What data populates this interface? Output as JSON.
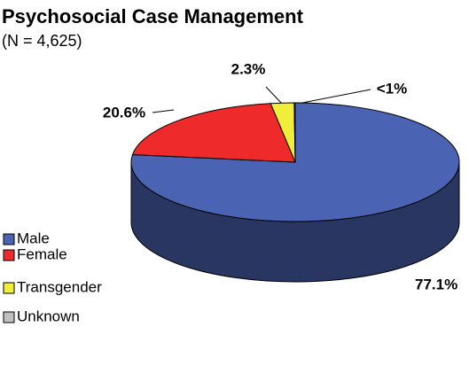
{
  "chart_data": {
    "type": "pie",
    "title": "Psychosocial Case Management",
    "subtitle": "(N = 4,625)",
    "categories": [
      "Male",
      "Female",
      "Transgender",
      "Unknown"
    ],
    "values": [
      77.1,
      20.6,
      2.3,
      0.1
    ],
    "value_labels": [
      "77.1%",
      "20.6%",
      "2.3%",
      "<1%"
    ],
    "colors": [
      "#4a63b3",
      "#ee2a2a",
      "#f0ee3a",
      "#c0c0c0"
    ],
    "legend": "left"
  }
}
